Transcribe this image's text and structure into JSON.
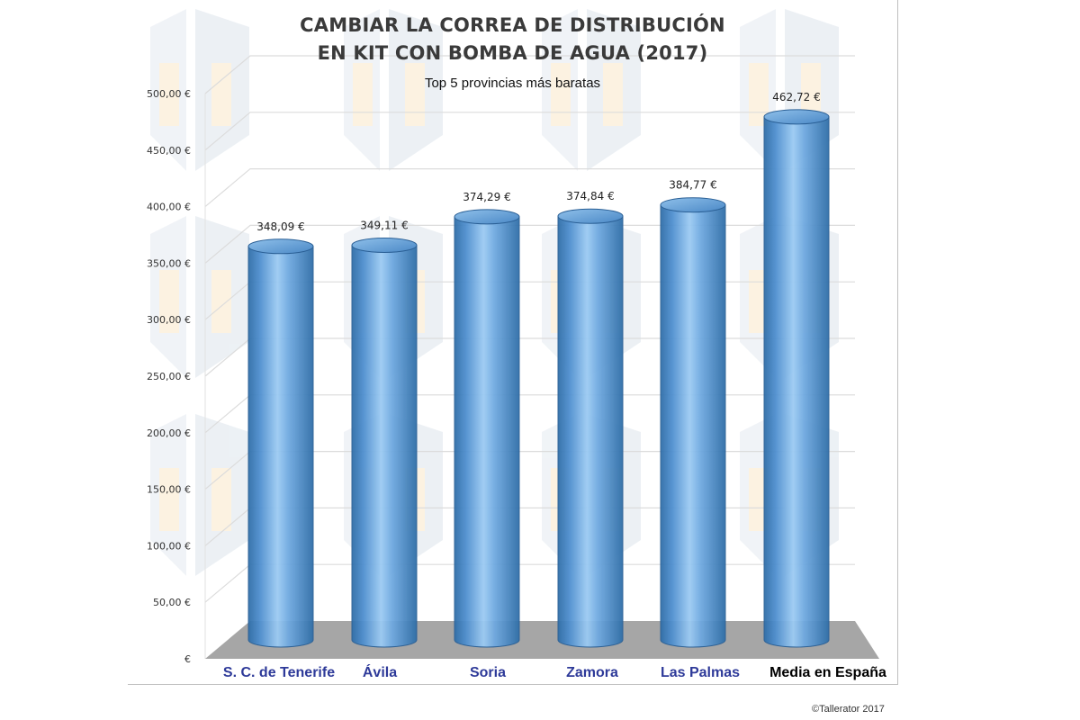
{
  "credit": "©Tallerator 2017",
  "colors": {
    "bar": "#5b9bd5",
    "bar_dark": "#2f6ea8",
    "bar_light": "#a9d2f5",
    "floor": "#a6a6a6",
    "grid": "#d9d9d9",
    "category_text": "#2e3a99",
    "highlight_text": "#000000",
    "watermark": "#e9eef3"
  },
  "chart_data": {
    "type": "bar",
    "title": [
      "CAMBIAR LA CORREA DE DISTRIBUCIÓN",
      "EN KIT CON BOMBA DE AGUA (2017)"
    ],
    "subtitle": "Top 5 provincias más baratas",
    "categories": [
      "S. C. de Tenerife",
      "Ávila",
      "Soria",
      "Zamora",
      "Las Palmas",
      "Media en España"
    ],
    "values": [
      348.09,
      349.11,
      374.29,
      374.84,
      384.77,
      462.72
    ],
    "data_labels": [
      "348,09 €",
      "349,11 €",
      "374,29 €",
      "374,84 €",
      "384,77 €",
      "462,72 €"
    ],
    "highlighted_category": "Media en España",
    "ylim": [
      0,
      500
    ],
    "yticks": [
      0,
      50,
      100,
      150,
      200,
      250,
      300,
      350,
      400,
      450,
      500
    ],
    "ytick_labels": [
      "€",
      "50,00 €",
      "100,00 €",
      "150,00 €",
      "200,00 €",
      "250,00 €",
      "300,00 €",
      "350,00 €",
      "400,00 €",
      "450,00 €",
      "500,00 €"
    ],
    "grid": true,
    "style": "3d-cylinder"
  }
}
